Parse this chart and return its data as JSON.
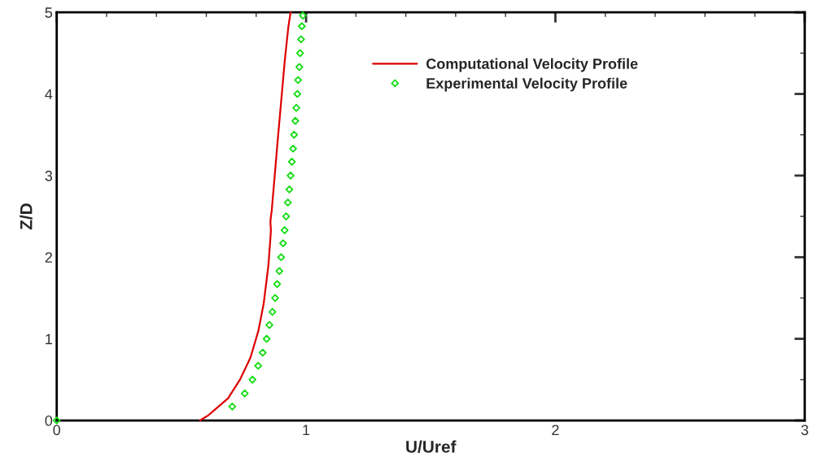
{
  "chart_data": {
    "type": "line",
    "xlabel": "U/Uref",
    "ylabel": "Z/D",
    "xlim": [
      0,
      3
    ],
    "ylim": [
      0,
      5
    ],
    "xticks": [
      0,
      {
        "value": 0.2,
        "label": null
      },
      {
        "value": 0.4,
        "label": null
      },
      {
        "value": 0.6,
        "label": null
      },
      {
        "value": 0.8,
        "label": null
      },
      1,
      {
        "value": 1.2,
        "label": null
      },
      {
        "value": 1.4,
        "label": null
      },
      {
        "value": 1.6,
        "label": null
      },
      {
        "value": 1.8,
        "label": null
      },
      2,
      {
        "value": 2.2,
        "label": null
      },
      {
        "value": 2.4,
        "label": null
      },
      {
        "value": 2.6,
        "label": null
      },
      {
        "value": 2.8,
        "label": null
      },
      3
    ],
    "yticks": [
      0,
      {
        "value": 0.5,
        "label": null
      },
      1,
      {
        "value": 1.5,
        "label": null
      },
      2,
      {
        "value": 2.5,
        "label": null
      },
      3,
      {
        "value": 3.5,
        "label": null
      },
      4,
      {
        "value": 4.5,
        "label": null
      },
      5
    ],
    "grid": false,
    "legend": "top",
    "series": [
      {
        "name": "Computational Velocity Profile",
        "color": "#dd0000",
        "marker": "none",
        "line_style": "solid",
        "x": [
          0.575,
          0.607,
          0.687,
          0.735,
          0.777,
          0.809,
          0.83,
          0.849,
          0.857,
          0.859,
          0.857,
          0.859,
          0.862,
          0.888,
          0.915,
          0.929,
          0.938
        ],
        "values": [
          0,
          0.06,
          0.27,
          0.5,
          0.77,
          1.1,
          1.43,
          1.9,
          2.23,
          2.33,
          2.43,
          2.5,
          2.56,
          3.49,
          4.42,
          4.82,
          5.0
        ]
      },
      {
        "name": "Experimental Velocity Profile",
        "type": "scatter",
        "color": "#11dd11",
        "marker": "diamond",
        "x": [
          0,
          0.704,
          0.754,
          0.785,
          0.808,
          0.826,
          0.842,
          0.853,
          0.865,
          0.876,
          0.884,
          0.893,
          0.9,
          0.908,
          0.914,
          0.92,
          0.927,
          0.933,
          0.938,
          0.943,
          0.948,
          0.952,
          0.957,
          0.961,
          0.965,
          0.968,
          0.973,
          0.976,
          0.98,
          0.983,
          0.987
        ],
        "values": [
          0,
          0.17,
          0.33,
          0.5,
          0.67,
          0.83,
          1.0,
          1.17,
          1.33,
          1.5,
          1.67,
          1.83,
          2.0,
          2.17,
          2.33,
          2.5,
          2.67,
          2.83,
          3.0,
          3.17,
          3.33,
          3.5,
          3.67,
          3.83,
          4.0,
          4.17,
          4.33,
          4.5,
          4.67,
          4.83,
          4.96
        ]
      }
    ]
  }
}
